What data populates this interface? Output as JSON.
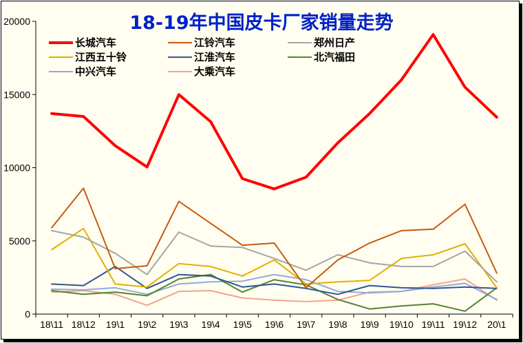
{
  "chart_data": {
    "type": "line",
    "title": "18-19年中国皮卡厂家销量走势",
    "xlabel": "",
    "ylabel": "",
    "categories": [
      "18\\11",
      "18\\12",
      "19\\1",
      "19\\2",
      "19\\3",
      "19\\4",
      "19\\5",
      "19\\6",
      "19\\7",
      "19\\8",
      "19\\9",
      "19\\10",
      "19\\11",
      "19\\12",
      "20\\1"
    ],
    "ylim": [
      0,
      20000
    ],
    "yticks": [
      0,
      5000,
      10000,
      15000,
      20000
    ],
    "grid": false,
    "legend": "top-left",
    "series": [
      {
        "name": "长城汽车",
        "color": "#ff0000",
        "width": 4,
        "values": [
          13700,
          13500,
          11500,
          10050,
          15000,
          13150,
          9250,
          8550,
          9350,
          11700,
          13700,
          16000,
          19100,
          15500,
          13450
        ]
      },
      {
        "name": "江铃汽车",
        "color": "#c55a11",
        "width": 2,
        "values": [
          5900,
          8600,
          3100,
          3300,
          7700,
          6200,
          4700,
          4850,
          1800,
          3700,
          4850,
          5700,
          5800,
          7500,
          2800
        ]
      },
      {
        "name": "郑州日产",
        "color": "#a5a5a5",
        "width": 2,
        "values": [
          5700,
          5250,
          4150,
          2700,
          5600,
          4650,
          4550,
          3800,
          3000,
          4050,
          3500,
          3250,
          3250,
          4300,
          2200
        ]
      },
      {
        "name": "江西五十铃",
        "color": "#e0b000",
        "width": 2,
        "values": [
          4400,
          5850,
          2050,
          1850,
          3450,
          3250,
          2600,
          3700,
          2050,
          2200,
          2300,
          3800,
          4050,
          4800,
          1800
        ]
      },
      {
        "name": "江淮汽车",
        "color": "#2f5597",
        "width": 2,
        "values": [
          2050,
          1950,
          3250,
          1750,
          2700,
          2600,
          1850,
          2050,
          1750,
          1350,
          1950,
          1800,
          1750,
          1850,
          1750
        ]
      },
      {
        "name": "北汽福田",
        "color": "#548235",
        "width": 2,
        "values": [
          1600,
          1350,
          1500,
          1250,
          2400,
          2700,
          1500,
          2350,
          2000,
          1000,
          350,
          550,
          700,
          200,
          1800
        ]
      },
      {
        "name": "中兴汽车",
        "color": "#8faadc",
        "width": 2,
        "values": [
          1700,
          1650,
          1800,
          1350,
          2050,
          2200,
          2250,
          2700,
          2350,
          1550,
          1450,
          1550,
          1850,
          2100,
          1000
        ]
      },
      {
        "name": "大乘汽车",
        "color": "#f4a28c",
        "width": 2,
        "values": [
          1500,
          1600,
          1350,
          600,
          1550,
          1600,
          1100,
          950,
          850,
          950,
          1500,
          1550,
          2000,
          2400,
          950
        ]
      }
    ]
  }
}
